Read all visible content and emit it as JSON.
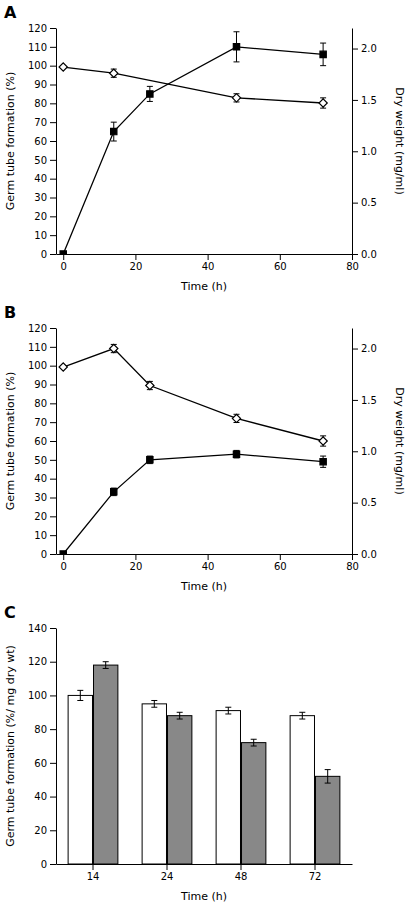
{
  "chart_data": [
    {
      "type": "line",
      "title": "A",
      "xlabel": "Time (h)",
      "ylabel": "Germ tube formation (%)",
      "y2label": "Dry weight (mg/ml)",
      "xlim": [
        -2,
        80
      ],
      "xticks": [
        0,
        20,
        40,
        60,
        80
      ],
      "ylim": [
        0,
        120
      ],
      "yticks": [
        0,
        10,
        20,
        30,
        40,
        50,
        60,
        70,
        80,
        90,
        100,
        110,
        120
      ],
      "y2lim": [
        0,
        2.2
      ],
      "y2ticks": [
        {
          "value": 0,
          "label": "0.0"
        },
        0.5,
        {
          "value": 1.0,
          "label": "1.0"
        },
        1.5,
        {
          "value": 2.0,
          "label": "2.0"
        }
      ],
      "grid": false,
      "series": [
        {
          "x": [
            0,
            14,
            24,
            48,
            72
          ],
          "values": [
            0,
            65,
            85,
            110,
            106
          ],
          "errors": [
            0,
            5,
            4,
            8,
            6
          ],
          "color": "#000000",
          "marker": "square",
          "line_style": "solid"
        },
        {
          "x": [
            0,
            14,
            48,
            72
          ],
          "values": [
            1.82,
            1.76,
            1.52,
            1.47
          ],
          "errors": [
            0,
            0.04,
            0.04,
            0.05
          ],
          "color": "#000000",
          "marker": "diamond-open",
          "line_style": "solid",
          "axis": "y2"
        }
      ]
    },
    {
      "type": "line",
      "title": "B",
      "xlabel": "Time (h)",
      "ylabel": "Germ tube formation (%)",
      "y2label": "Dry weight (mg/ml)",
      "xlim": [
        -2,
        80
      ],
      "xticks": [
        0,
        20,
        40,
        60,
        80
      ],
      "ylim": [
        0,
        120
      ],
      "yticks": [
        0,
        10,
        20,
        30,
        40,
        50,
        60,
        70,
        80,
        90,
        100,
        110,
        120
      ],
      "y2lim": [
        0,
        2.2
      ],
      "y2ticks": [
        {
          "value": 0,
          "label": "0.0"
        },
        0.5,
        {
          "value": 1.0,
          "label": "1.0"
        },
        1.5,
        {
          "value": 2.0,
          "label": "2.0"
        }
      ],
      "grid": false,
      "series": [
        {
          "x": [
            0,
            14,
            24,
            48,
            72
          ],
          "values": [
            0,
            33,
            50,
            53,
            49
          ],
          "errors": [
            0,
            2,
            2,
            2,
            3
          ],
          "color": "#000000",
          "marker": "square",
          "line_style": "solid"
        },
        {
          "x": [
            0,
            14,
            24,
            48,
            72
          ],
          "values": [
            1.82,
            2.0,
            1.64,
            1.32,
            1.1
          ],
          "errors": [
            0,
            0.04,
            0.04,
            0.04,
            0.05
          ],
          "color": "#000000",
          "marker": "diamond-open",
          "line_style": "solid",
          "axis": "y2"
        }
      ]
    },
    {
      "type": "bar",
      "title": "C",
      "xlabel": "Time (h)",
      "ylabel": "Germ tube formation (%/ mg dry wt)",
      "categories": [
        "14",
        "24",
        "48",
        "72"
      ],
      "ylim": [
        0,
        140
      ],
      "yticks": [
        0,
        20,
        40,
        60,
        80,
        100,
        120,
        140
      ],
      "grid": false,
      "series": [
        {
          "values": [
            100,
            95,
            91,
            88
          ],
          "errors": [
            3,
            2,
            2,
            2
          ],
          "color": "#ffffff"
        },
        {
          "values": [
            118,
            88,
            72,
            52
          ],
          "errors": [
            2,
            2,
            2,
            4
          ],
          "color": "#888888"
        }
      ]
    }
  ]
}
